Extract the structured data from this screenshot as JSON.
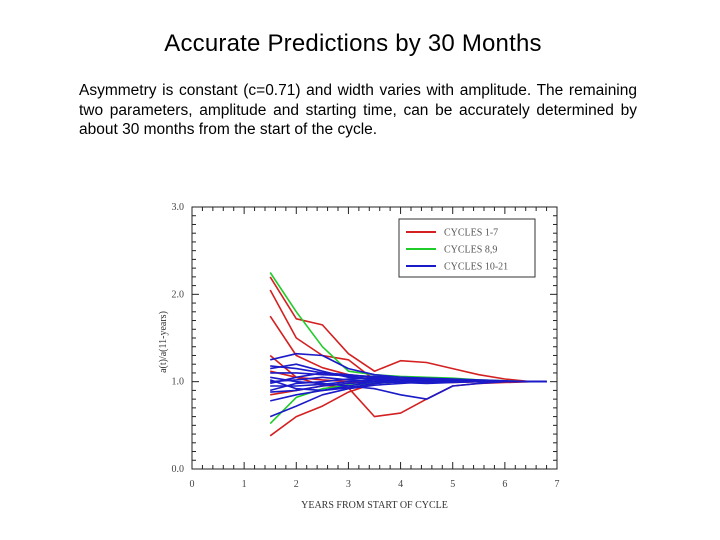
{
  "slide": {
    "title": "Accurate Predictions by 30 Months",
    "body": "Asymmetry is constant (c=0.71) and width varies with amplitude. The remaining two parameters, amplitude and starting time, can be accurately determined by about 30 months from the start of the cycle."
  },
  "chart_data": {
    "type": "line",
    "xlabel": "YEARS FROM START OF CYCLE",
    "ylabel": "a(t)/a(11-years)",
    "xlim": [
      0,
      7
    ],
    "ylim": [
      0.0,
      3.0
    ],
    "x_ticks": [
      "0",
      "1",
      "2",
      "3",
      "4",
      "5",
      "6",
      "7"
    ],
    "y_ticks": [
      "0.0",
      "1.0",
      "2.0",
      "3.0"
    ],
    "grid": false,
    "legend_position": "top-right",
    "colors": {
      "red": "#d42020",
      "green": "#1fcc2a",
      "blue": "#1a1ac8"
    },
    "legend": [
      {
        "label": "CYCLES 1-7",
        "color_key": "red"
      },
      {
        "label": "CYCLES 8,9",
        "color_key": "green"
      },
      {
        "label": "CYCLES 10-21",
        "color_key": "blue"
      }
    ],
    "x": [
      1.5,
      2.0,
      2.5,
      3.0,
      3.5,
      4.0,
      4.5,
      5.0,
      5.5,
      6.0,
      6.5,
      6.8
    ],
    "series": [
      {
        "color_key": "red",
        "values": [
          2.2,
          1.72,
          1.65,
          1.32,
          1.12,
          1.24,
          1.22,
          1.15,
          1.08,
          1.03,
          1.0,
          1.0
        ]
      },
      {
        "color_key": "red",
        "values": [
          2.05,
          1.5,
          1.3,
          1.25,
          1.02,
          1.0,
          1.0,
          1.02,
          1.01,
          1.0,
          1.0,
          1.0
        ]
      },
      {
        "color_key": "red",
        "values": [
          1.75,
          1.3,
          1.16,
          1.08,
          1.05,
          1.03,
          1.02,
          1.0,
          1.0,
          1.0,
          1.0,
          1.0
        ]
      },
      {
        "color_key": "red",
        "values": [
          1.3,
          1.05,
          0.96,
          0.93,
          0.6,
          0.64,
          0.8,
          0.95,
          0.98,
          0.99,
          1.0,
          1.0
        ]
      },
      {
        "color_key": "red",
        "values": [
          0.38,
          0.6,
          0.72,
          0.88,
          0.98,
          1.0,
          1.0,
          1.0,
          1.0,
          1.0,
          1.0,
          1.0
        ]
      },
      {
        "color_key": "red",
        "values": [
          0.85,
          0.9,
          0.95,
          0.98,
          1.0,
          1.02,
          1.02,
          1.02,
          1.01,
          1.0,
          1.0,
          1.0
        ]
      },
      {
        "color_key": "red",
        "values": [
          1.12,
          1.05,
          1.02,
          1.0,
          1.0,
          1.0,
          0.99,
          0.99,
          1.0,
          1.0,
          1.0,
          1.0
        ]
      },
      {
        "color_key": "green",
        "values": [
          2.25,
          1.8,
          1.4,
          1.12,
          1.08,
          1.06,
          1.05,
          1.04,
          1.02,
          1.01,
          1.0,
          1.0
        ]
      },
      {
        "color_key": "green",
        "values": [
          0.52,
          0.82,
          0.92,
          0.96,
          0.98,
          1.0,
          1.0,
          1.0,
          1.0,
          1.0,
          1.0,
          1.0
        ]
      },
      {
        "color_key": "blue",
        "values": [
          1.25,
          1.32,
          1.3,
          1.15,
          1.08,
          1.05,
          1.03,
          1.02,
          1.01,
          1.0,
          1.0,
          1.0
        ]
      },
      {
        "color_key": "blue",
        "values": [
          1.18,
          1.15,
          1.1,
          1.08,
          1.05,
          1.03,
          1.03,
          1.02,
          1.0,
          1.0,
          1.0,
          1.0
        ]
      },
      {
        "color_key": "blue",
        "values": [
          1.05,
          1.0,
          0.98,
          0.95,
          0.92,
          0.85,
          0.8,
          0.95,
          0.98,
          1.0,
          1.0,
          1.0
        ]
      },
      {
        "color_key": "blue",
        "values": [
          0.95,
          0.95,
          0.97,
          1.0,
          1.02,
          1.02,
          1.0,
          1.0,
          1.0,
          1.0,
          1.0,
          1.0
        ]
      },
      {
        "color_key": "blue",
        "values": [
          0.78,
          0.85,
          0.9,
          0.95,
          1.0,
          1.02,
          1.03,
          1.02,
          1.01,
          1.0,
          1.0,
          1.0
        ]
      },
      {
        "color_key": "blue",
        "values": [
          0.6,
          0.72,
          0.85,
          0.92,
          0.96,
          0.98,
          1.0,
          1.0,
          1.0,
          1.0,
          1.0,
          1.0
        ]
      },
      {
        "color_key": "blue",
        "values": [
          1.1,
          1.1,
          1.08,
          1.07,
          1.06,
          1.05,
          1.04,
          1.03,
          1.02,
          1.01,
          1.0,
          1.0
        ]
      },
      {
        "color_key": "blue",
        "values": [
          0.98,
          1.05,
          1.1,
          1.06,
          1.03,
          1.02,
          1.01,
          1.0,
          1.0,
          1.0,
          1.0,
          1.0
        ]
      },
      {
        "color_key": "blue",
        "values": [
          1.02,
          0.92,
          0.9,
          0.93,
          0.98,
          1.0,
          1.01,
          1.01,
          1.0,
          1.0,
          1.0,
          1.0
        ]
      },
      {
        "color_key": "blue",
        "values": [
          1.15,
          1.2,
          1.12,
          1.05,
          1.02,
          1.01,
          1.0,
          1.0,
          1.0,
          1.0,
          1.0,
          1.0
        ]
      },
      {
        "color_key": "blue",
        "values": [
          0.9,
          0.98,
          1.0,
          1.03,
          1.04,
          1.03,
          1.02,
          1.01,
          1.0,
          1.0,
          1.0,
          1.0
        ]
      },
      {
        "color_key": "blue",
        "values": [
          1.0,
          1.02,
          1.05,
          1.02,
          1.0,
          0.99,
          0.98,
          0.99,
          1.0,
          1.0,
          1.0,
          1.0
        ]
      },
      {
        "color_key": "blue",
        "values": [
          0.88,
          0.9,
          0.95,
          0.98,
          1.0,
          1.0,
          1.0,
          1.0,
          1.0,
          1.0,
          1.0,
          1.0
        ]
      }
    ]
  }
}
